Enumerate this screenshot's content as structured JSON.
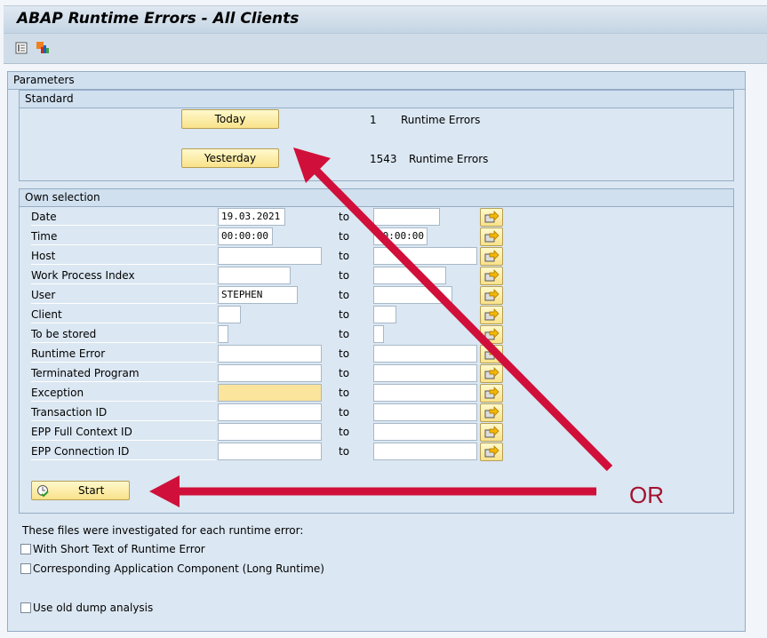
{
  "title": "ABAP Runtime Errors - All Clients",
  "toolbar": {
    "icons": [
      "list-icon",
      "chart-icon"
    ]
  },
  "parameters": {
    "heading": "Parameters",
    "standard": {
      "heading": "Standard",
      "today_label": "Today",
      "today_count": "1",
      "today_text": "Runtime Errors",
      "yesterday_label": "Yesterday",
      "yesterday_count": "1543",
      "yesterday_text": "Runtime Errors"
    },
    "own": {
      "heading": "Own selection",
      "to_label": "to",
      "rows": [
        {
          "label": "Date",
          "low": "19.03.2021",
          "high": ""
        },
        {
          "label": "Time",
          "low": "00:00:00",
          "high": "00:00:00"
        },
        {
          "label": "Host",
          "low": "",
          "high": ""
        },
        {
          "label": "Work Process Index",
          "low": "",
          "high": ""
        },
        {
          "label": "User",
          "low": "STEPHEN",
          "high": ""
        },
        {
          "label": "Client",
          "low": "",
          "high": ""
        },
        {
          "label": "To be stored",
          "low": "",
          "high": ""
        },
        {
          "label": "Runtime Error",
          "low": "",
          "high": ""
        },
        {
          "label": "Terminated Program",
          "low": "",
          "high": ""
        },
        {
          "label": "Exception",
          "low": "",
          "high": ""
        },
        {
          "label": "Transaction ID",
          "low": "",
          "high": ""
        },
        {
          "label": "EPP Full Context ID",
          "low": "",
          "high": ""
        },
        {
          "label": "EPP Connection ID",
          "low": "",
          "high": ""
        }
      ],
      "start_label": "Start"
    },
    "info_text": "These files were investigated for each runtime error:",
    "checkboxes": [
      {
        "label": "With Short Text of Runtime Error",
        "checked": false
      },
      {
        "label": "Corresponding Application Component (Long Runtime)",
        "checked": false
      },
      {
        "label": "Use old dump analysis",
        "checked": false
      }
    ]
  },
  "annotation": {
    "or_text": "OR",
    "color": "#d0103a"
  }
}
